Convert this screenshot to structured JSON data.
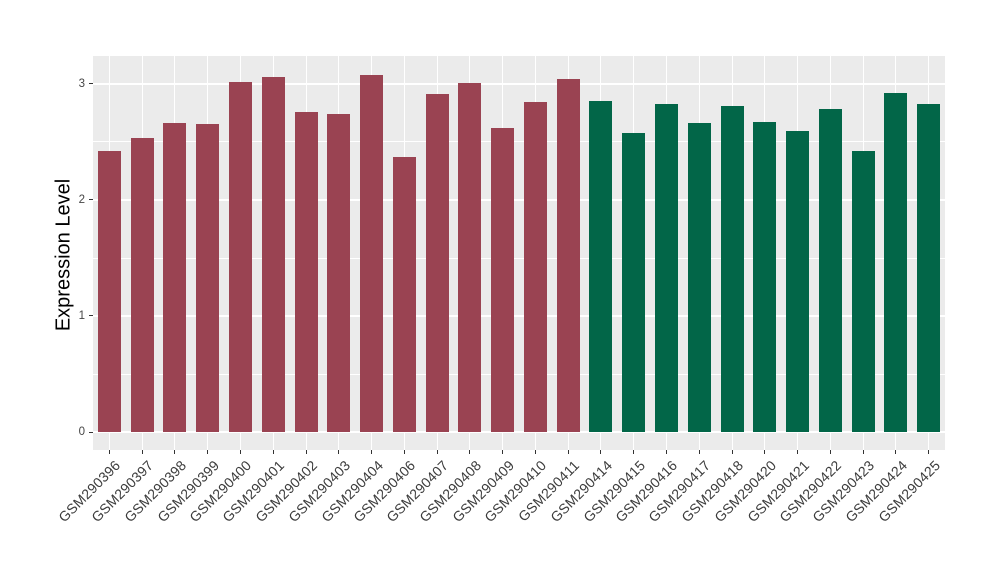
{
  "chart_data": {
    "type": "bar",
    "title": "",
    "xlabel": "",
    "ylabel": "Expression Level",
    "yticks": [
      0,
      1,
      2,
      3
    ],
    "minor_gridlines": [
      0.5,
      1.5,
      2.5
    ],
    "ylim": [
      -0.16,
      3.24
    ],
    "grid": true,
    "legend": "none",
    "panel_background": "#EBEBEB",
    "gridline_color": "#FFFFFF",
    "axis_text_color": "#454545",
    "x_axis_text_color": "#3C3C3C",
    "axis_title_color": "#000000",
    "tick_mark_color": "#333333",
    "groups": [
      {
        "name": "series-1",
        "color": "#9A4352"
      },
      {
        "name": "series-2",
        "color": "#026648"
      }
    ],
    "bars": [
      {
        "label": "GSM290396",
        "value": 2.42,
        "group": 0
      },
      {
        "label": "GSM290397",
        "value": 2.53,
        "group": 0
      },
      {
        "label": "GSM290398",
        "value": 2.66,
        "group": 0
      },
      {
        "label": "GSM290399",
        "value": 2.65,
        "group": 0
      },
      {
        "label": "GSM290400",
        "value": 3.02,
        "group": 0
      },
      {
        "label": "GSM290401",
        "value": 3.06,
        "group": 0
      },
      {
        "label": "GSM290402",
        "value": 2.76,
        "group": 0
      },
      {
        "label": "GSM290403",
        "value": 2.74,
        "group": 0
      },
      {
        "label": "GSM290404",
        "value": 3.08,
        "group": 0
      },
      {
        "label": "GSM290406",
        "value": 2.37,
        "group": 0
      },
      {
        "label": "GSM290407",
        "value": 2.91,
        "group": 0
      },
      {
        "label": "GSM290408",
        "value": 3.01,
        "group": 0
      },
      {
        "label": "GSM290409",
        "value": 2.62,
        "group": 0
      },
      {
        "label": "GSM290410",
        "value": 2.84,
        "group": 0
      },
      {
        "label": "GSM290411",
        "value": 3.04,
        "group": 0
      },
      {
        "label": "GSM290414",
        "value": 2.85,
        "group": 1
      },
      {
        "label": "GSM290415",
        "value": 2.58,
        "group": 1
      },
      {
        "label": "GSM290416",
        "value": 2.83,
        "group": 1
      },
      {
        "label": "GSM290417",
        "value": 2.66,
        "group": 1
      },
      {
        "label": "GSM290418",
        "value": 2.81,
        "group": 1
      },
      {
        "label": "GSM290420",
        "value": 2.67,
        "group": 1
      },
      {
        "label": "GSM290421",
        "value": 2.59,
        "group": 1
      },
      {
        "label": "GSM290422",
        "value": 2.78,
        "group": 1
      },
      {
        "label": "GSM290423",
        "value": 2.42,
        "group": 1
      },
      {
        "label": "GSM290424",
        "value": 2.92,
        "group": 1
      },
      {
        "label": "GSM290425",
        "value": 2.83,
        "group": 1
      }
    ]
  }
}
